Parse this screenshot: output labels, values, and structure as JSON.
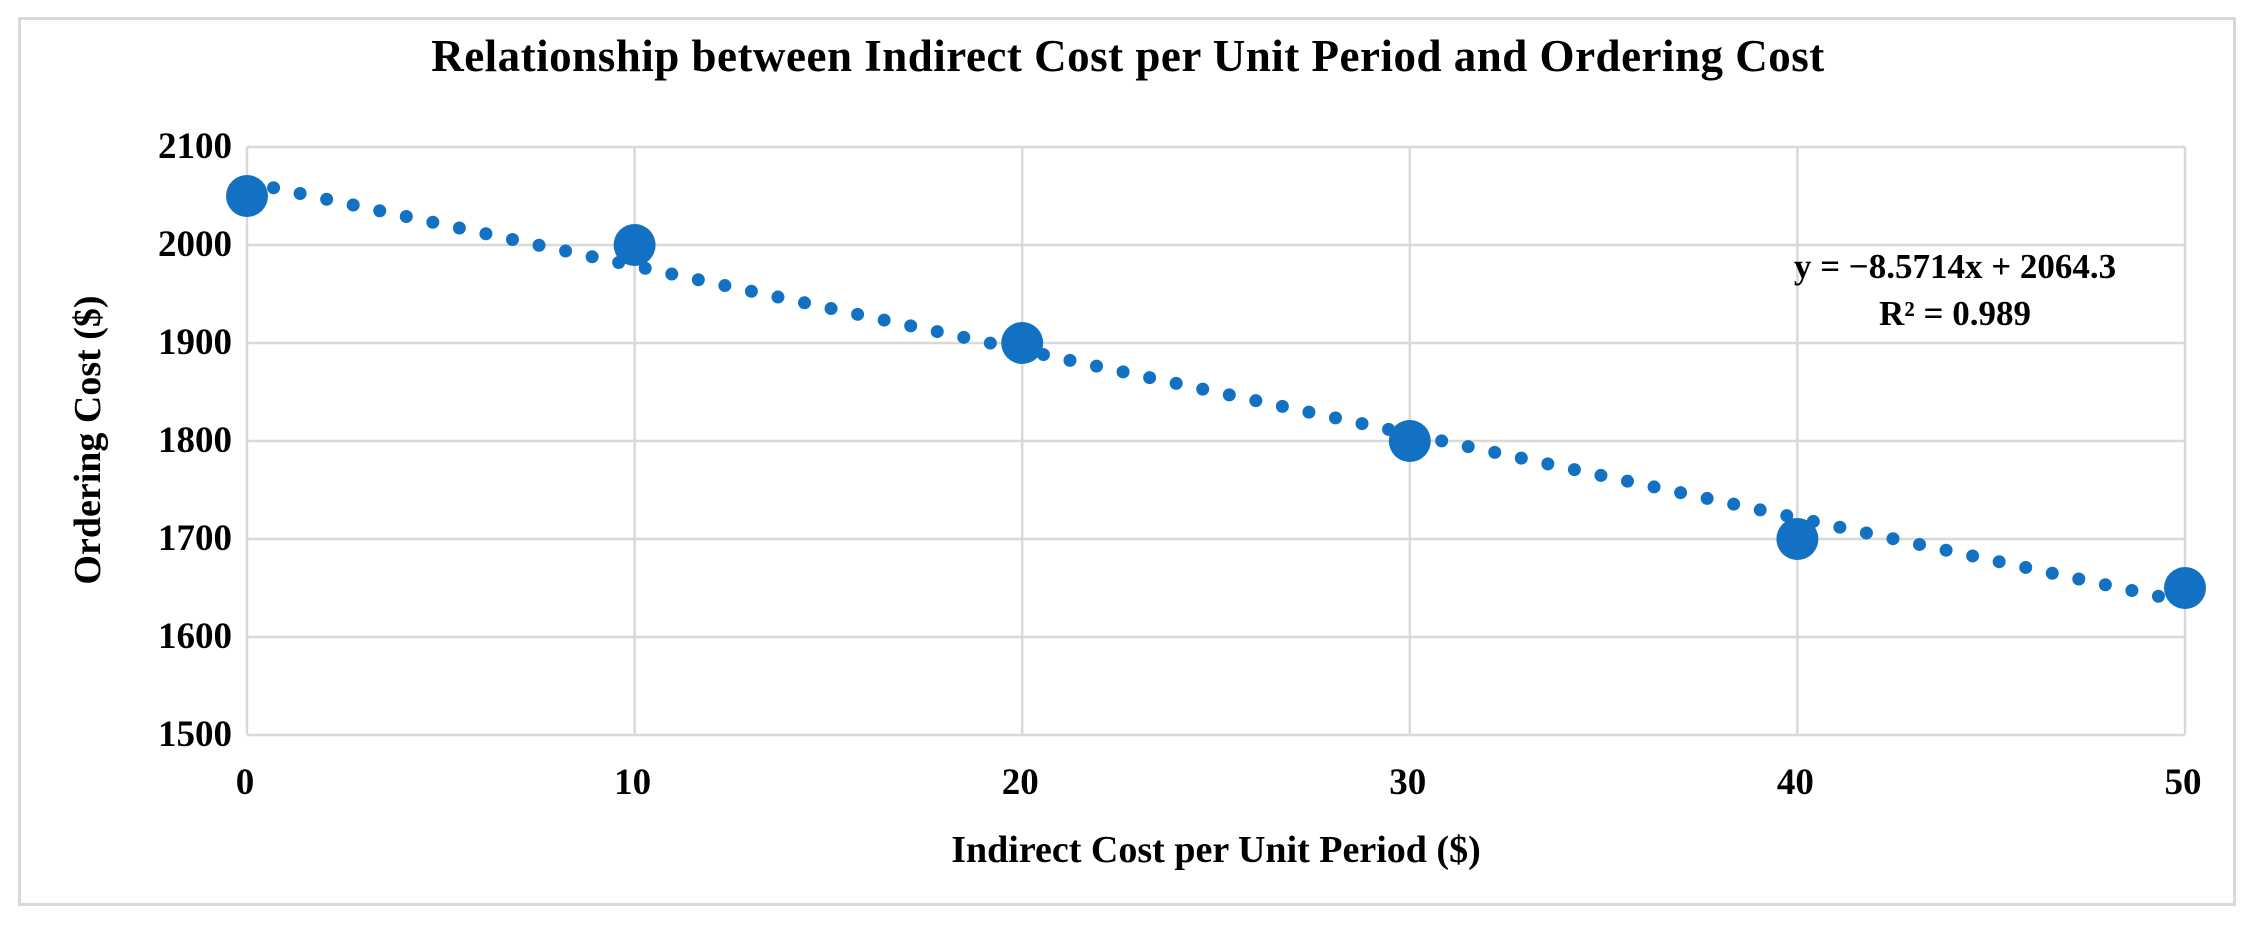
{
  "chart_data": {
    "type": "scatter",
    "title": "Relationship between Indirect Cost per Unit Period and Ordering Cost",
    "xlabel": "Indirect Cost per Unit Period  ($)",
    "ylabel": "Ordering Cost ($)",
    "x": [
      0,
      10,
      20,
      30,
      40,
      50
    ],
    "y": [
      2050,
      2000,
      1900,
      1800,
      1700,
      1650
    ],
    "xlim": [
      0,
      50
    ],
    "ylim": [
      1500,
      2100
    ],
    "x_ticks": [
      "0",
      "10",
      "20",
      "30",
      "40",
      "50"
    ],
    "y_ticks": [
      "2100",
      "2000",
      "1900",
      "1800",
      "1700",
      "1600",
      "1500"
    ],
    "y_tick_values": [
      2100,
      2000,
      1900,
      1800,
      1700,
      1600,
      1500
    ],
    "x_tick_values": [
      0,
      10,
      20,
      30,
      40,
      50
    ],
    "grid": true,
    "legend": "none",
    "trendline": {
      "style": "dotted",
      "slope": -8.5714,
      "intercept": 2064.3,
      "equation_label": "y = −8.5714x + 2064.3",
      "r_squared_label": "R² = 0.989"
    },
    "colors": {
      "marker": "#1271c2",
      "trendline": "#1271c2",
      "gridline": "#d9d9d9",
      "chart_border": "#d9d9d9",
      "text": "#000000"
    }
  }
}
